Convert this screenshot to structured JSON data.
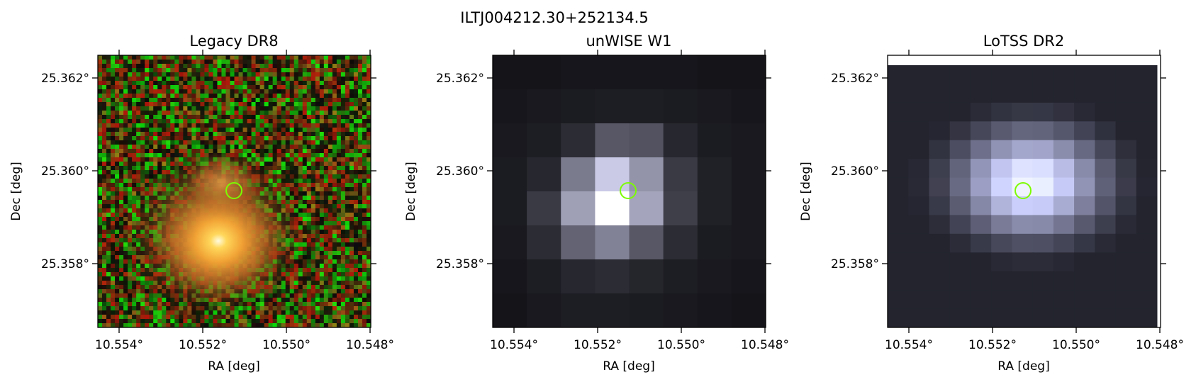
{
  "figure": {
    "suptitle": "ILTJ004212.30+252134.5"
  },
  "marker": {
    "color": "#7CFC00"
  },
  "panels": [
    {
      "id": "legacy",
      "title": "Legacy DR8",
      "xlabel": "RA [deg]",
      "ylabel": "Dec [deg]",
      "xticks": [
        "10.554°",
        "10.552°",
        "10.550°",
        "10.548°"
      ],
      "yticks": [
        "25.362°",
        "25.360°",
        "25.358°"
      ],
      "x_tick_values": [
        10.554,
        10.552,
        10.55,
        10.548
      ],
      "y_tick_values": [
        25.362,
        25.36,
        25.358
      ],
      "xlim": [
        10.5549,
        10.548
      ],
      "ylim": [
        25.3565,
        25.3625
      ],
      "source_position": {
        "ra": 10.5513,
        "dec": 25.35955
      },
      "image": "color optical cutout: noisy red/green background with bright orange galaxy"
    },
    {
      "id": "unwise",
      "title": "unWISE W1",
      "xlabel": "RA [deg]",
      "ylabel": "Dec [deg]",
      "xticks": [
        "10.554°",
        "10.552°",
        "10.550°",
        "10.548°"
      ],
      "yticks": [
        "25.362°",
        "25.360°",
        "25.358°"
      ],
      "x_tick_values": [
        10.554,
        10.552,
        10.55,
        10.548
      ],
      "y_tick_values": [
        25.362,
        25.36,
        25.358
      ],
      "xlim": [
        10.5549,
        10.548
      ],
      "ylim": [
        25.3565,
        25.3625
      ],
      "source_position": {
        "ra": 10.5513,
        "dec": 25.35955
      },
      "image": "coarse-pixel grayscale infrared cutout with a bright central source"
    },
    {
      "id": "lotss",
      "title": "LoTSS DR2",
      "xlabel": "RA [deg]",
      "ylabel": "Dec [deg]",
      "xticks": [
        "10.554°",
        "10.552°",
        "10.550°",
        "10.548°"
      ],
      "yticks": [
        "25.362°",
        "25.360°",
        "25.358°"
      ],
      "x_tick_values": [
        10.554,
        10.552,
        10.55,
        10.548
      ],
      "y_tick_values": [
        25.362,
        25.36,
        25.358
      ],
      "xlim": [
        10.5549,
        10.548
      ],
      "ylim": [
        25.3565,
        25.3625
      ],
      "source_position": {
        "ra": 10.5513,
        "dec": 25.35955
      },
      "image": "grayscale radio cutout with a bright extended source"
    }
  ]
}
